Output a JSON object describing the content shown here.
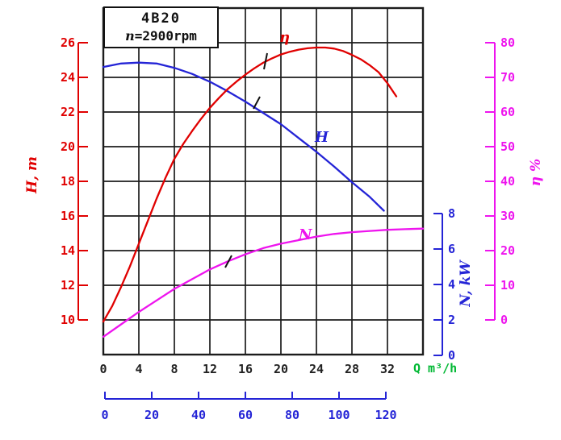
{
  "title_box": {
    "model": "4B20",
    "speed_var": "n",
    "speed_rest": "=2900rpm"
  },
  "colors": {
    "red": "#e00000",
    "blue": "#2424d6",
    "magenta": "#ee14ee",
    "green": "#00b833",
    "grid": "#1c1c1c",
    "xlabel": "#222222"
  },
  "chart_data": {
    "type": "line",
    "title": "Pump performance curves 4B20 at n=2900rpm",
    "grid": true,
    "x_axis": {
      "unit_label": "Q m³/h",
      "ticks": [
        0,
        4,
        8,
        12,
        16,
        20,
        24,
        28,
        32
      ],
      "range": [
        0,
        36
      ],
      "grid_step": 4
    },
    "x_axis_secondary": {
      "ticks": [
        0,
        20,
        40,
        60,
        80,
        100,
        120
      ],
      "range": [
        0,
        120
      ]
    },
    "y_axis_head": {
      "label": "H, m",
      "ticks": [
        26,
        24,
        22,
        20,
        18,
        16,
        14,
        12,
        10
      ],
      "range": [
        8,
        28
      ],
      "grid_step": 2
    },
    "y_axis_efficiency": {
      "label": "η %",
      "ticks": [
        80,
        70,
        60,
        50,
        40,
        30,
        20,
        10,
        0
      ],
      "range": [
        -10,
        90
      ]
    },
    "y_axis_power": {
      "label": "N, kW",
      "ticks": [
        8,
        6,
        4,
        2,
        0
      ],
      "range": [
        0,
        8
      ]
    },
    "series": [
      {
        "name": "head-curve",
        "label": "H",
        "color_key": "blue",
        "axis": "H",
        "points": [
          [
            0,
            24.6
          ],
          [
            2,
            24.8
          ],
          [
            4,
            24.85
          ],
          [
            6,
            24.8
          ],
          [
            8,
            24.55
          ],
          [
            10,
            24.2
          ],
          [
            12,
            23.75
          ],
          [
            14,
            23.2
          ],
          [
            16,
            22.6
          ],
          [
            18,
            21.95
          ],
          [
            20,
            21.3
          ],
          [
            22,
            20.5
          ],
          [
            24,
            19.7
          ],
          [
            26,
            18.85
          ],
          [
            28,
            17.95
          ],
          [
            30,
            17.1
          ],
          [
            31.6,
            16.3
          ]
        ]
      },
      {
        "name": "efficiency-curve",
        "label": "η",
        "color_key": "red",
        "axis": "ETA",
        "points": [
          [
            0,
            -0.5
          ],
          [
            1,
            4
          ],
          [
            2,
            9.5
          ],
          [
            3,
            15.5
          ],
          [
            4,
            22
          ],
          [
            5,
            28.5
          ],
          [
            6,
            35
          ],
          [
            7,
            41
          ],
          [
            8,
            46.5
          ],
          [
            9,
            50.8
          ],
          [
            10,
            54.5
          ],
          [
            11,
            58
          ],
          [
            12,
            61.2
          ],
          [
            13,
            64
          ],
          [
            14,
            66.6
          ],
          [
            15,
            68.8
          ],
          [
            16,
            70.8
          ],
          [
            17,
            72.6
          ],
          [
            18,
            74.2
          ],
          [
            19,
            75.5
          ],
          [
            20,
            76.6
          ],
          [
            21,
            77.4
          ],
          [
            22,
            78
          ],
          [
            23,
            78.4
          ],
          [
            24,
            78.6
          ],
          [
            25,
            78.6
          ],
          [
            26,
            78.3
          ],
          [
            27,
            77.6
          ],
          [
            28,
            76.5
          ],
          [
            29,
            75.2
          ],
          [
            30,
            73.5
          ],
          [
            31,
            71.5
          ],
          [
            32,
            68.3
          ],
          [
            33,
            64.5
          ]
        ]
      },
      {
        "name": "power-curve",
        "label": "N",
        "color_key": "magenta",
        "axis": "N",
        "points": [
          [
            0,
            1.05
          ],
          [
            2,
            1.75
          ],
          [
            4,
            2.45
          ],
          [
            6,
            3.1
          ],
          [
            8,
            3.75
          ],
          [
            10,
            4.3
          ],
          [
            12,
            4.85
          ],
          [
            14,
            5.3
          ],
          [
            16,
            5.7
          ],
          [
            18,
            6.05
          ],
          [
            20,
            6.3
          ],
          [
            22,
            6.5
          ],
          [
            24,
            6.7
          ],
          [
            26,
            6.85
          ],
          [
            28,
            6.95
          ],
          [
            30,
            7.02
          ],
          [
            32,
            7.08
          ],
          [
            34,
            7.12
          ],
          [
            36,
            7.15
          ]
        ]
      }
    ]
  }
}
